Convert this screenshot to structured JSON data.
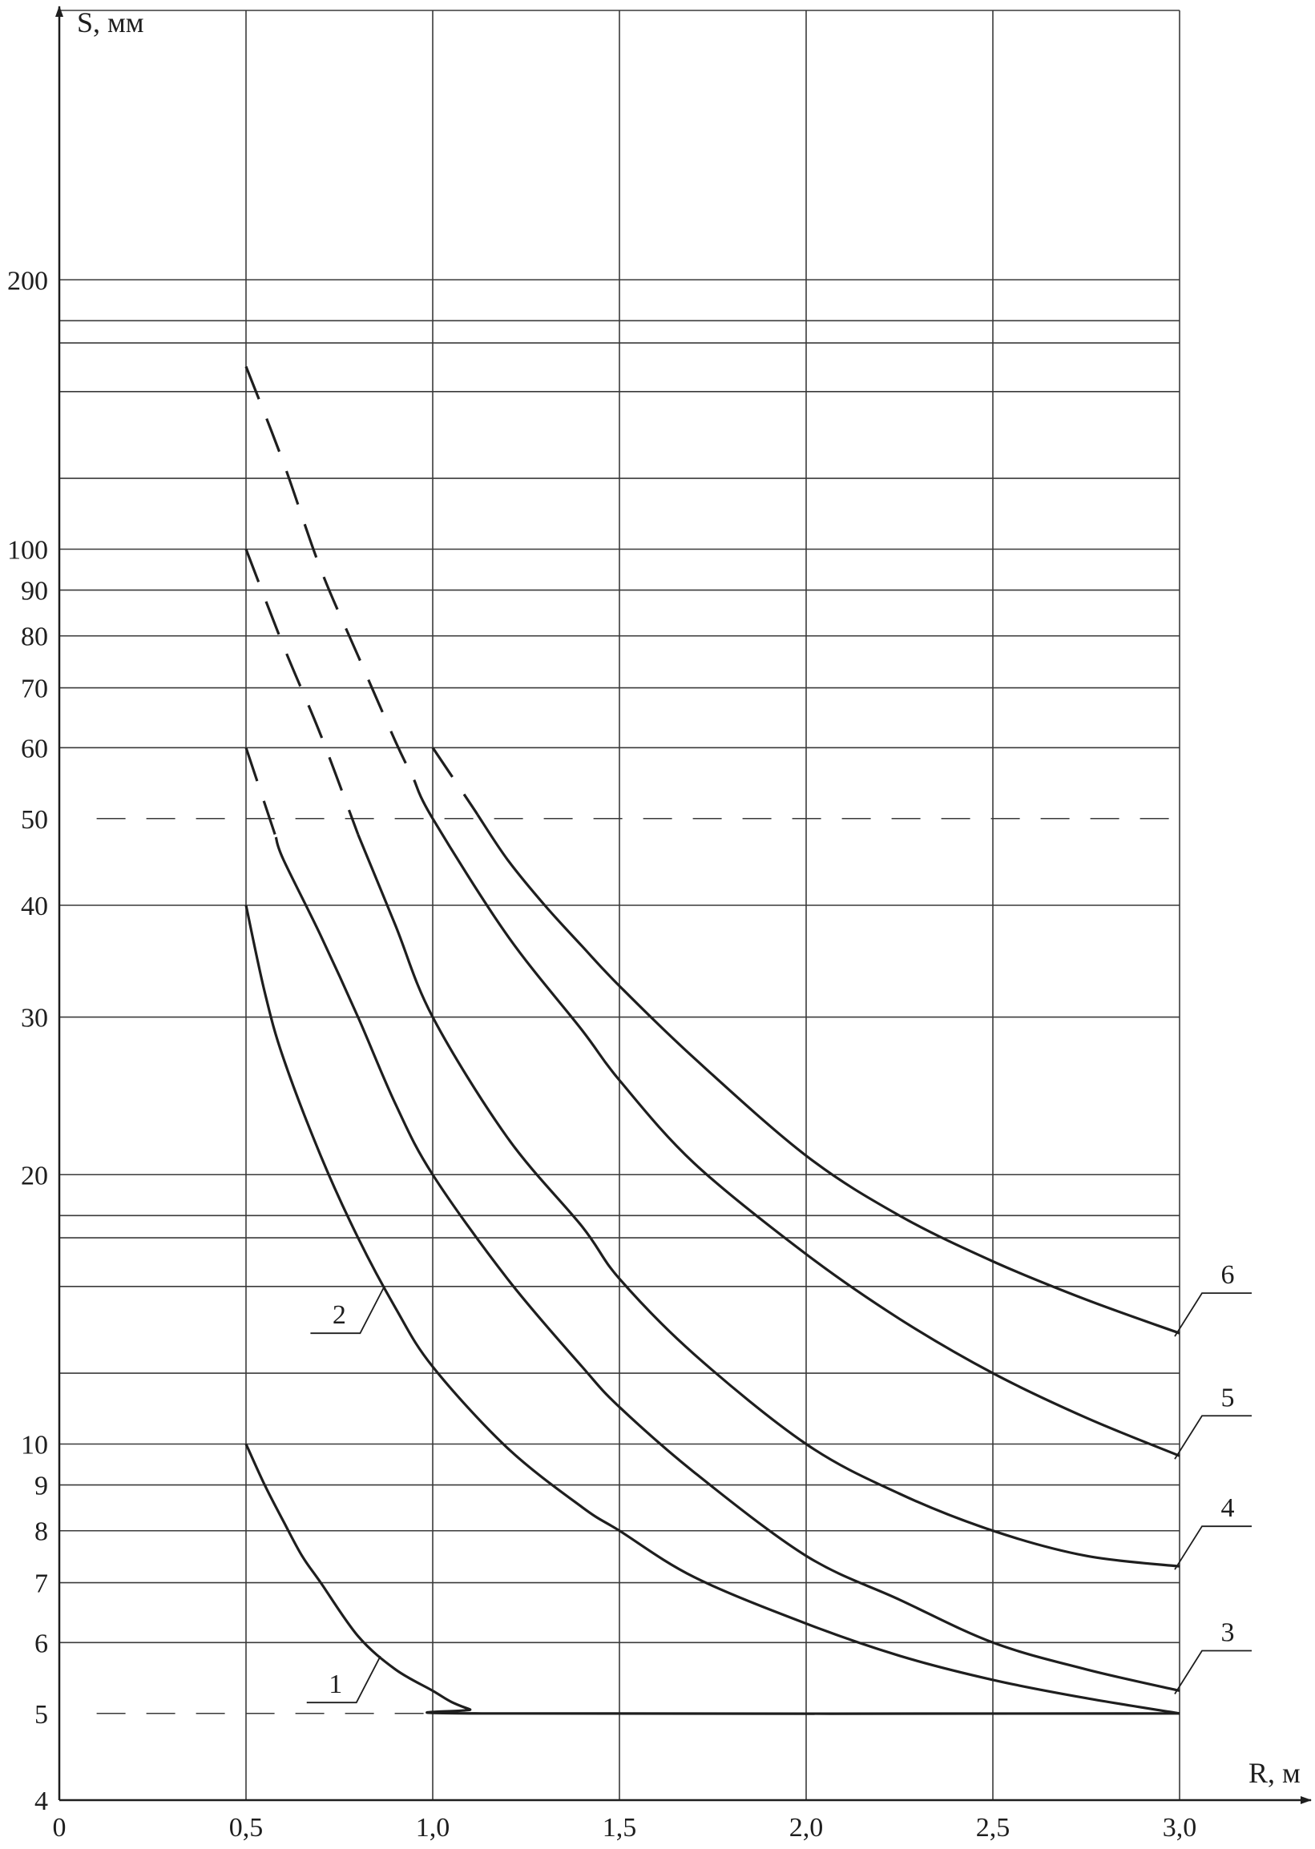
{
  "chart_data": {
    "type": "line",
    "title": "",
    "xlabel": "R, м",
    "ylabel": "S, мм",
    "x_scale": "linear",
    "y_scale": "log",
    "xlim": [
      0,
      3.0
    ],
    "ylim": [
      4,
      400
    ],
    "x_ticks": [
      {
        "value": 0,
        "label": "0"
      },
      {
        "value": 0.5,
        "label": "0,5"
      },
      {
        "value": 1.0,
        "label": "1,0"
      },
      {
        "value": 1.5,
        "label": "1,5"
      },
      {
        "value": 2.0,
        "label": "2,0"
      },
      {
        "value": 2.5,
        "label": "2,5"
      },
      {
        "value": 3.0,
        "label": "3,0"
      }
    ],
    "y_ticks": [
      {
        "value": 4,
        "label": "4"
      },
      {
        "value": 5,
        "label": "5"
      },
      {
        "value": 6,
        "label": "6"
      },
      {
        "value": 7,
        "label": "7"
      },
      {
        "value": 8,
        "label": "8"
      },
      {
        "value": 9,
        "label": "9"
      },
      {
        "value": 10,
        "label": "10"
      },
      {
        "value": 20,
        "label": "20"
      },
      {
        "value": 30,
        "label": "30"
      },
      {
        "value": 40,
        "label": "40"
      },
      {
        "value": 50,
        "label": "50"
      },
      {
        "value": 60,
        "label": "60"
      },
      {
        "value": 70,
        "label": "70"
      },
      {
        "value": 80,
        "label": "80"
      },
      {
        "value": 90,
        "label": "90"
      },
      {
        "value": 100,
        "label": "100"
      },
      {
        "value": 200,
        "label": "200"
      }
    ],
    "y_grid_solid": [
      9,
      8,
      7,
      6,
      10,
      12,
      15,
      17,
      18,
      20,
      30,
      40,
      60,
      70,
      80,
      90,
      100,
      120,
      150,
      170,
      180,
      200,
      400
    ],
    "y_grid_dashed": [
      5,
      50
    ],
    "x_grid": [
      0.5,
      1.0,
      1.5,
      2.0,
      2.5,
      3.0
    ],
    "grid": true,
    "series": [
      {
        "name": "1",
        "points": [
          [
            0.5,
            10
          ],
          [
            0.55,
            9.0
          ],
          [
            0.6,
            8.2
          ],
          [
            0.65,
            7.5
          ],
          [
            0.7,
            7.0
          ],
          [
            0.8,
            6.1
          ],
          [
            0.9,
            5.6
          ],
          [
            1.0,
            5.3
          ],
          [
            1.05,
            5.15
          ],
          [
            1.1,
            5.05
          ],
          [
            1.13,
            5.0
          ],
          [
            3.0,
            5.0
          ]
        ],
        "dashed_until": null
      },
      {
        "name": "2",
        "points": [
          [
            0.5,
            40
          ],
          [
            0.55,
            32
          ],
          [
            0.6,
            27
          ],
          [
            0.7,
            21
          ],
          [
            0.8,
            17
          ],
          [
            0.9,
            14.2
          ],
          [
            1.0,
            12.2
          ],
          [
            1.2,
            9.9
          ],
          [
            1.4,
            8.5
          ],
          [
            1.5,
            8.0
          ],
          [
            1.7,
            7.1
          ],
          [
            2.0,
            6.3
          ],
          [
            2.25,
            5.8
          ],
          [
            2.5,
            5.45
          ],
          [
            2.75,
            5.2
          ],
          [
            3.0,
            5.0
          ]
        ],
        "dashed_until": null
      },
      {
        "name": "3",
        "points": [
          [
            0.5,
            60
          ],
          [
            0.6,
            45
          ],
          [
            0.7,
            37
          ],
          [
            0.8,
            30
          ],
          [
            0.9,
            24
          ],
          [
            1.0,
            20
          ],
          [
            1.2,
            15.3
          ],
          [
            1.4,
            12.2
          ],
          [
            1.5,
            11.0
          ],
          [
            1.7,
            9.3
          ],
          [
            2.0,
            7.5
          ],
          [
            2.25,
            6.7
          ],
          [
            2.5,
            6.0
          ],
          [
            2.75,
            5.6
          ],
          [
            3.0,
            5.3
          ]
        ],
        "dashed_until": 0.58
      },
      {
        "name": "4",
        "points": [
          [
            0.5,
            100
          ],
          [
            0.6,
            78
          ],
          [
            0.7,
            62
          ],
          [
            0.8,
            48
          ],
          [
            0.9,
            38
          ],
          [
            1.0,
            30
          ],
          [
            1.2,
            22
          ],
          [
            1.4,
            17.5
          ],
          [
            1.5,
            15.3
          ],
          [
            1.7,
            12.6
          ],
          [
            2.0,
            10.0
          ],
          [
            2.25,
            8.8
          ],
          [
            2.5,
            8.0
          ],
          [
            2.75,
            7.5
          ],
          [
            3.0,
            7.3
          ]
        ],
        "dashed_until": 0.8
      },
      {
        "name": "5",
        "points": [
          [
            0.5,
            160
          ],
          [
            0.6,
            125
          ],
          [
            0.7,
            95
          ],
          [
            0.8,
            76
          ],
          [
            0.9,
            61
          ],
          [
            1.0,
            50
          ],
          [
            1.2,
            37
          ],
          [
            1.4,
            29
          ],
          [
            1.5,
            25.5
          ],
          [
            1.7,
            20.6
          ],
          [
            2.0,
            16.3
          ],
          [
            2.25,
            13.8
          ],
          [
            2.5,
            12.0
          ],
          [
            2.75,
            10.7
          ],
          [
            3.0,
            9.7
          ]
        ],
        "dashed_until": 0.95
      },
      {
        "name": "6",
        "points": [
          [
            1.0,
            60
          ],
          [
            1.1,
            52
          ],
          [
            1.2,
            45
          ],
          [
            1.3,
            40
          ],
          [
            1.4,
            36
          ],
          [
            1.5,
            32.5
          ],
          [
            1.7,
            27
          ],
          [
            2.0,
            21
          ],
          [
            2.25,
            18
          ],
          [
            2.5,
            16
          ],
          [
            2.75,
            14.5
          ],
          [
            3.0,
            13.3
          ]
        ],
        "dashed_until": 1.12
      }
    ]
  }
}
